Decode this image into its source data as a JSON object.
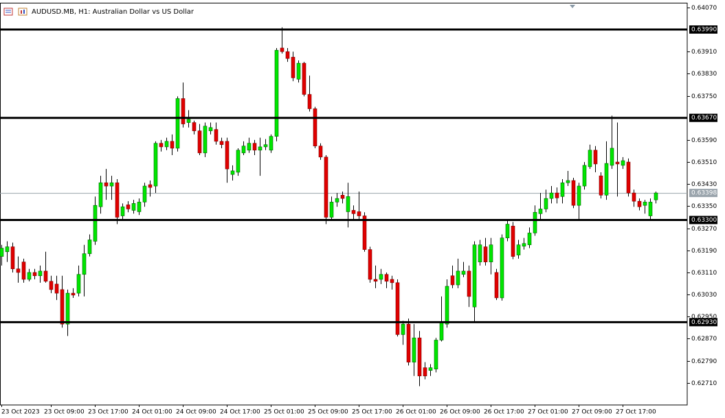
{
  "chart_data": {
    "type": "candlestick",
    "title": "AUDUSD.MB, H1:  Australian Dollar vs US Dollar",
    "categories": [
      "23 Oct 2023",
      null,
      null,
      null,
      null,
      null,
      null,
      null,
      null,
      "23 Oct 09:00",
      null,
      null,
      null,
      null,
      null,
      null,
      null,
      "23 Oct 17:00",
      null,
      null,
      null,
      null,
      null,
      null,
      null,
      "24 Oct 01:00",
      null,
      null,
      null,
      null,
      null,
      null,
      null,
      "24 Oct 09:00",
      null,
      null,
      null,
      null,
      null,
      null,
      null,
      "24 Oct 17:00",
      null,
      null,
      null,
      null,
      null,
      null,
      null,
      "25 Oct 01:00",
      null,
      null,
      null,
      null,
      null,
      null,
      null,
      "25 Oct 09:00",
      null,
      null,
      null,
      null,
      null,
      null,
      null,
      "25 Oct 17:00",
      null,
      null,
      null,
      null,
      null,
      null,
      null,
      "26 Oct 01:00",
      null,
      null,
      null,
      null,
      null,
      null,
      null,
      "26 Oct 09:00",
      null,
      null,
      null,
      null,
      null,
      null,
      null,
      "26 Oct 17:00",
      null,
      null,
      null,
      null,
      null,
      null,
      null,
      "27 Oct 01:00",
      null,
      null,
      null,
      null,
      null,
      null,
      null,
      "27 Oct 09:00",
      null,
      null,
      null,
      null,
      null,
      null,
      null,
      "27 Oct 17:00",
      null,
      null,
      null,
      null,
      null,
      null
    ],
    "open": [
      0.63168,
      0.63185,
      0.63203,
      0.63123,
      0.63148,
      0.63085,
      0.6311,
      0.63098,
      0.63115,
      0.63078,
      0.63068,
      0.63048,
      0.62923,
      0.63035,
      0.63035,
      0.63103,
      0.63178,
      0.63223,
      0.63348,
      0.63435,
      0.63423,
      0.63435,
      0.63315,
      0.63355,
      0.63335,
      0.6333,
      0.63365,
      0.63428,
      0.63423,
      0.63578,
      0.63565,
      0.63585,
      0.6356,
      0.6374,
      0.63653,
      0.63653,
      0.63623,
      0.63543,
      0.63623,
      0.63628,
      0.63585,
      0.63585,
      0.63465,
      0.63473,
      0.63543,
      0.63553,
      0.63578,
      0.63553,
      0.63565,
      0.63553,
      0.63603,
      0.63923,
      0.6391,
      0.6389,
      0.6381,
      0.63868,
      0.63755,
      0.63703,
      0.63568,
      0.63528,
      0.6331,
      0.63365,
      0.6339,
      0.6333,
      0.63335,
      0.6333,
      0.63315,
      0.63193,
      0.63085,
      0.63085,
      0.63103,
      0.63085,
      0.63073,
      0.62885,
      0.62923,
      0.62785,
      0.62873,
      0.62765,
      0.62755,
      0.6276,
      0.62865,
      0.62923,
      0.63098,
      0.63065,
      0.63103,
      0.63115,
      0.62985,
      0.63148,
      0.63203,
      0.63148,
      0.6311,
      0.63018,
      0.63235,
      0.63278,
      0.63173,
      0.63205,
      0.6321,
      0.63253,
      0.63323,
      0.6334,
      0.63378,
      0.63398,
      0.63385,
      0.63435,
      0.63443,
      0.63353,
      0.63423,
      0.63493,
      0.63553,
      0.6346,
      0.6339,
      0.63498,
      0.6351,
      0.63498,
      0.6351,
      0.63398,
      0.63368,
      0.63353,
      0.63315,
      0.63373
    ],
    "high": [
      0.6321,
      0.63223,
      0.63218,
      0.63168,
      0.6316,
      0.63123,
      0.63123,
      0.63135,
      0.63185,
      0.63098,
      0.63098,
      0.63098,
      0.63048,
      0.63053,
      0.63135,
      0.6321,
      0.63248,
      0.63385,
      0.6346,
      0.63485,
      0.6346,
      0.63448,
      0.6336,
      0.63368,
      0.63373,
      0.63378,
      0.63435,
      0.63443,
      0.63585,
      0.6359,
      0.63598,
      0.6361,
      0.63748,
      0.63798,
      0.63698,
      0.6366,
      0.63648,
      0.63653,
      0.63653,
      0.63653,
      0.63598,
      0.63598,
      0.63498,
      0.6356,
      0.63585,
      0.63598,
      0.6359,
      0.63598,
      0.63593,
      0.6361,
      0.63923,
      0.63998,
      0.63923,
      0.6391,
      0.63878,
      0.63873,
      0.63823,
      0.6371,
      0.63578,
      0.63535,
      0.63385,
      0.63398,
      0.63403,
      0.63435,
      0.63353,
      0.63403,
      0.63328,
      0.63203,
      0.63135,
      0.63123,
      0.6311,
      0.63098,
      0.63085,
      0.62935,
      0.62943,
      0.62923,
      0.62898,
      0.62785,
      0.62778,
      0.62873,
      0.63023,
      0.63085,
      0.63135,
      0.6316,
      0.63148,
      0.63135,
      0.63223,
      0.63228,
      0.63235,
      0.63235,
      0.63123,
      0.63248,
      0.63303,
      0.63293,
      0.63228,
      0.63235,
      0.63273,
      0.63353,
      0.63398,
      0.6341,
      0.63423,
      0.63418,
      0.63448,
      0.63478,
      0.63453,
      0.63435,
      0.6351,
      0.63573,
      0.63568,
      0.63473,
      0.63585,
      0.63678,
      0.63653,
      0.63528,
      0.63523,
      0.6341,
      0.63378,
      0.63373,
      0.63378,
      0.63403
    ],
    "low": [
      0.63135,
      0.63148,
      0.6311,
      0.63073,
      0.63073,
      0.63078,
      0.63085,
      0.63073,
      0.63073,
      0.63035,
      0.6301,
      0.6291,
      0.6288,
      0.63018,
      0.63023,
      0.63023,
      0.63168,
      0.6321,
      0.63323,
      0.63373,
      0.63373,
      0.63285,
      0.63298,
      0.63328,
      0.63323,
      0.63318,
      0.63348,
      0.63385,
      0.63398,
      0.63548,
      0.63553,
      0.63535,
      0.63548,
      0.63635,
      0.63635,
      0.6361,
      0.63535,
      0.63528,
      0.6361,
      0.63573,
      0.6356,
      0.63435,
      0.63443,
      0.6346,
      0.63535,
      0.63543,
      0.63535,
      0.6346,
      0.63553,
      0.63543,
      0.63585,
      0.63903,
      0.63873,
      0.63803,
      0.63798,
      0.63748,
      0.63693,
      0.6356,
      0.63518,
      0.63285,
      0.63298,
      0.63348,
      0.6336,
      0.63273,
      0.63303,
      0.63298,
      0.63185,
      0.63073,
      0.63053,
      0.63068,
      0.63053,
      0.63048,
      0.62878,
      0.62848,
      0.62773,
      0.62735,
      0.62698,
      0.62723,
      0.62735,
      0.62748,
      0.6286,
      0.6291,
      0.63053,
      0.63053,
      0.63093,
      0.62985,
      0.62928,
      0.63135,
      0.63135,
      0.63103,
      0.6301,
      0.63008,
      0.63223,
      0.63158,
      0.6316,
      0.63193,
      0.63198,
      0.63243,
      0.63298,
      0.63328,
      0.6336,
      0.6336,
      0.6336,
      0.63423,
      0.63343,
      0.63303,
      0.6341,
      0.63485,
      0.63473,
      0.63378,
      0.63373,
      0.63485,
      0.63385,
      0.63485,
      0.63385,
      0.63348,
      0.63335,
      0.63323,
      0.63303,
      0.6336
    ],
    "close": [
      0.63198,
      0.63203,
      0.63123,
      0.6311,
      0.63085,
      0.6311,
      0.63098,
      0.63115,
      0.63078,
      0.63048,
      0.63035,
      0.62923,
      0.63035,
      0.63028,
      0.63103,
      0.63178,
      0.63228,
      0.63353,
      0.63435,
      0.63423,
      0.63435,
      0.6331,
      0.63348,
      0.6334,
      0.6336,
      0.63365,
      0.63423,
      0.63418,
      0.63578,
      0.63565,
      0.63585,
      0.6356,
      0.6374,
      0.63648,
      0.63665,
      0.63623,
      0.63543,
      0.6364,
      0.63635,
      0.63585,
      0.63573,
      0.63485,
      0.63478,
      0.63553,
      0.63568,
      0.63578,
      0.63553,
      0.63565,
      0.63573,
      0.63603,
      0.63915,
      0.6391,
      0.63885,
      0.63815,
      0.63868,
      0.63755,
      0.63703,
      0.63568,
      0.63528,
      0.6331,
      0.63365,
      0.63378,
      0.63378,
      0.63385,
      0.63323,
      0.63315,
      0.63193,
      0.63085,
      0.63078,
      0.63103,
      0.63078,
      0.63073,
      0.62885,
      0.62923,
      0.62785,
      0.62873,
      0.62735,
      0.62735,
      0.62765,
      0.62865,
      0.62928,
      0.6306,
      0.63065,
      0.63115,
      0.63115,
      0.63023,
      0.6321,
      0.6321,
      0.63148,
      0.6321,
      0.63018,
      0.63235,
      0.63285,
      0.63168,
      0.6321,
      0.63215,
      0.63253,
      0.63328,
      0.6334,
      0.63378,
      0.63398,
      0.6338,
      0.63435,
      0.63443,
      0.63353,
      0.63423,
      0.63498,
      0.63553,
      0.63503,
      0.6339,
      0.63505,
      0.6356,
      0.63503,
      0.63515,
      0.63398,
      0.63368,
      0.63348,
      0.63365,
      0.63365,
      0.63398
    ],
    "up_color": "#00e600",
    "down_color": "#e00000",
    "ylim": [
      0.6263,
      0.64087
    ],
    "yticks": [
      {
        "value": 0.6407,
        "label": "0.64070"
      },
      {
        "value": 0.6391,
        "label": "0.63910"
      },
      {
        "value": 0.6383,
        "label": "0.63830"
      },
      {
        "value": 0.6375,
        "label": "0.63750"
      },
      {
        "value": 0.6359,
        "label": "0.63590"
      },
      {
        "value": 0.6351,
        "label": "0.63510"
      },
      {
        "value": 0.6343,
        "label": "0.63430"
      },
      {
        "value": 0.6335,
        "label": "0.63350"
      },
      {
        "value": 0.6327,
        "label": "0.63270"
      },
      {
        "value": 0.6319,
        "label": "0.63190"
      },
      {
        "value": 0.6311,
        "label": "0.63110"
      },
      {
        "value": 0.6303,
        "label": "0.63030"
      },
      {
        "value": 0.6295,
        "label": "0.62950"
      },
      {
        "value": 0.6287,
        "label": "0.62870"
      },
      {
        "value": 0.6279,
        "label": "0.62790"
      },
      {
        "value": 0.6271,
        "label": "0.62710"
      }
    ],
    "levels": [
      {
        "value": 0.6399,
        "label": "0.63990"
      },
      {
        "value": 0.6367,
        "label": "0.63670"
      },
      {
        "value": 0.633,
        "label": "0.63300"
      },
      {
        "value": 0.6293,
        "label": "0.62930"
      }
    ],
    "current_price": {
      "value": 0.63398,
      "label": "0.63398"
    }
  }
}
